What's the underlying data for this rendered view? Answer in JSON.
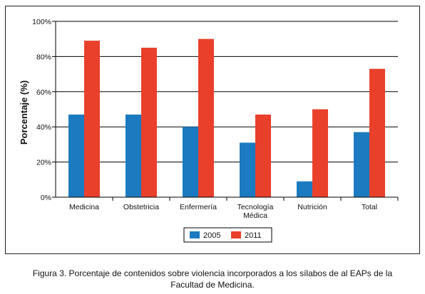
{
  "chart_data": {
    "type": "bar",
    "categories": [
      [
        "Medicina"
      ],
      [
        "Obstetricia"
      ],
      [
        "Enfermería"
      ],
      [
        "Tecnología",
        "Médica"
      ],
      [
        "Nutrición"
      ],
      [
        "Total"
      ]
    ],
    "series": [
      {
        "name": "2005",
        "values": [
          47,
          47,
          40,
          31,
          9,
          37
        ],
        "color": "#1b7ac0"
      },
      {
        "name": "2011",
        "values": [
          89,
          85,
          90,
          47,
          50,
          73
        ],
        "color": "#e8402b"
      }
    ],
    "title": "",
    "xlabel": "",
    "ylabel": "Porcentaje (%)",
    "ylim": [
      0,
      100
    ],
    "yticks": [
      "0%",
      "20%",
      "40%",
      "60%",
      "80%",
      "100%"
    ],
    "ytick_values": [
      0,
      20,
      40,
      60,
      80,
      100
    ],
    "grid": true,
    "legend_position": "bottom-center"
  },
  "caption": {
    "line1": "Figura 3. Porcentaje de contenidos sobre violencia incorporados a los sílabos de al EAPs de la",
    "line2": "Facultad de Medicina."
  }
}
